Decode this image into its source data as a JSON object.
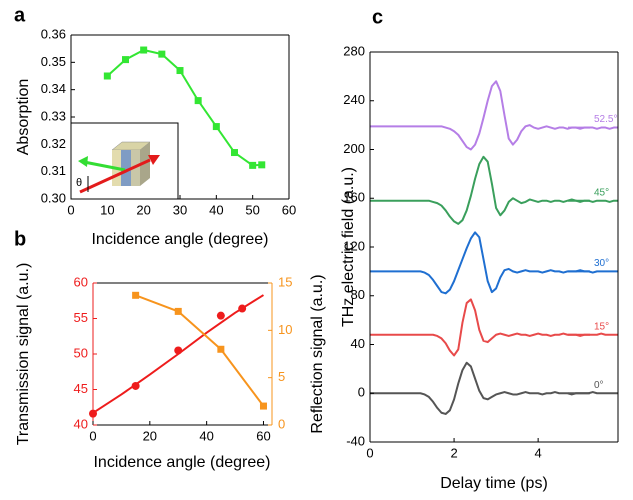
{
  "chart_data": [
    {
      "type": "line",
      "panel_label": "a",
      "xlabel": "Incidence angle (degree)",
      "ylabel": "Absorption",
      "inset_label": "θ",
      "xlim": [
        0,
        60
      ],
      "xticks": [
        0,
        10,
        20,
        30,
        40,
        50,
        60
      ],
      "ylim": [
        0.3,
        0.36
      ],
      "yticks": [
        {
          "value": 0.3,
          "label": "0.30"
        },
        0.31,
        0.32,
        0.33,
        0.34,
        0.35,
        0.36
      ],
      "series": [
        {
          "color": "#33e633",
          "marker": "square",
          "line": true,
          "x": [
            10,
            15,
            20,
            25,
            30,
            35,
            40,
            45,
            50,
            52.5
          ],
          "values": [
            0.345,
            0.351,
            0.3545,
            0.353,
            0.347,
            0.336,
            0.3265,
            0.317,
            0.3123,
            0.3125
          ]
        }
      ]
    },
    {
      "type": "line",
      "panel_label": "b",
      "xlabel": "Incidence angle (degree)",
      "ylabel": "Transmission signal (a.u.)",
      "y2label": "Reflection signal (a.u.)",
      "xlim": [
        0,
        63
      ],
      "xticks": [
        0,
        20,
        40,
        60
      ],
      "ylim": [
        40,
        60
      ],
      "yticks": [
        40,
        45,
        50,
        55,
        60
      ],
      "y2lim": [
        0,
        15
      ],
      "y2ticks": [
        0,
        5,
        10,
        15
      ],
      "series": [
        {
          "color": "#ee1c1c",
          "marker": "circle",
          "line": false,
          "x": [
            0,
            15,
            30,
            45,
            52.5
          ],
          "values": [
            41.6,
            45.5,
            50.5,
            55.4,
            56.4
          ]
        },
        {
          "color": "#ee1c1c",
          "line": true,
          "x": [
            0,
            10,
            20,
            30,
            40,
            50,
            60
          ],
          "values": [
            41.7,
            44.3,
            47.1,
            50,
            53,
            55.8,
            58.3
          ]
        },
        {
          "color": "#f7941d",
          "marker": "square",
          "line": true,
          "axis": "y2",
          "x": [
            15,
            30,
            45,
            60
          ],
          "values": [
            13.7,
            12,
            8,
            2
          ]
        }
      ]
    },
    {
      "type": "line",
      "panel_label": "c",
      "xlabel": "Delay time (ps)",
      "ylabel": "THz electric field (a.u.)",
      "xlim": [
        0,
        5.9
      ],
      "xticks": [
        0,
        2,
        4
      ],
      "ylim": [
        -40,
        280
      ],
      "yticks": [
        -40,
        0,
        40,
        80,
        120,
        160,
        200,
        240,
        280
      ],
      "x": [
        0,
        0.1,
        0.2,
        0.3,
        0.4,
        0.5,
        0.6,
        0.7,
        0.8,
        0.9,
        1,
        1.1,
        1.2,
        1.3,
        1.4,
        1.5,
        1.6,
        1.7,
        1.8,
        1.9,
        2,
        2.1,
        2.2,
        2.3,
        2.4,
        2.5,
        2.6,
        2.7,
        2.8,
        2.9,
        3,
        3.1,
        3.2,
        3.3,
        3.4,
        3.5,
        3.6,
        3.7,
        3.8,
        3.9,
        4,
        4.1,
        4.2,
        4.3,
        4.4,
        4.5,
        4.6,
        4.7,
        4.8,
        4.9,
        5,
        5.1,
        5.2,
        5.3,
        5.4,
        5.5,
        5.6,
        5.7,
        5.8,
        5.9
      ],
      "series": [
        {
          "name": "0°",
          "color": "#555555",
          "line": true,
          "values": [
            0,
            0,
            0,
            0,
            0,
            0,
            0,
            0,
            0,
            0,
            0,
            0,
            0,
            -1,
            -3,
            -7,
            -12,
            -16,
            -17,
            -14,
            -5,
            8,
            19,
            25,
            22,
            12,
            2,
            -4,
            -5,
            -3,
            -1,
            0,
            1,
            0,
            -1,
            -1,
            0,
            1,
            0,
            0,
            0,
            -1,
            0,
            0,
            1,
            0,
            0,
            0,
            -1,
            0,
            0,
            0,
            0,
            1,
            0,
            0,
            0,
            0,
            0,
            0
          ]
        },
        {
          "name": "15°",
          "color": "#e84a4a",
          "line": true,
          "values": [
            48,
            48,
            48,
            48,
            48,
            48,
            48,
            48,
            48,
            48,
            48,
            48,
            48,
            48,
            48,
            48,
            47,
            45,
            41,
            35,
            31,
            36,
            58,
            74,
            77,
            68,
            52,
            43,
            42,
            45,
            48,
            49,
            48,
            47,
            48,
            49,
            48,
            48,
            47,
            48,
            49,
            48,
            48,
            47,
            48,
            48,
            49,
            48,
            48,
            48,
            47,
            48,
            48,
            48,
            48,
            49,
            48,
            48,
            48,
            48
          ]
        },
        {
          "name": "30°",
          "color": "#1f6fd1",
          "line": true,
          "values": [
            100,
            100,
            100,
            100,
            100,
            100,
            100,
            100,
            100,
            100,
            100,
            100,
            100,
            99,
            97,
            93,
            88,
            83,
            82,
            85,
            92,
            101,
            110,
            119,
            127,
            132,
            128,
            110,
            92,
            83,
            86,
            95,
            101,
            102,
            100,
            99,
            100,
            101,
            100,
            100,
            100,
            99,
            100,
            101,
            100,
            100,
            99,
            100,
            100,
            100,
            101,
            100,
            100,
            99,
            100,
            100,
            100,
            100,
            100,
            100
          ]
        },
        {
          "name": "45°",
          "color": "#3a9f5c",
          "line": true,
          "values": [
            158,
            158,
            158,
            158,
            158,
            158,
            158,
            158,
            158,
            158,
            158,
            158,
            158,
            158,
            158,
            157,
            156,
            154,
            150,
            145,
            141,
            139,
            142,
            150,
            162,
            176,
            188,
            194,
            190,
            172,
            152,
            146,
            150,
            157,
            160,
            158,
            156,
            157,
            159,
            158,
            157,
            158,
            158,
            157,
            158,
            158,
            157,
            158,
            159,
            158,
            157,
            158,
            158,
            157,
            158,
            158,
            158,
            157,
            158,
            158
          ]
        },
        {
          "name": "52.5°",
          "color": "#b57ee6",
          "line": true,
          "values": [
            219,
            219,
            219,
            219,
            219,
            219,
            219,
            219,
            219,
            219,
            219,
            219,
            219,
            219,
            219,
            219,
            219,
            219,
            218,
            217,
            215,
            212,
            207,
            202,
            200,
            204,
            213,
            226,
            240,
            252,
            256,
            248,
            228,
            209,
            204,
            208,
            215,
            219,
            220,
            218,
            217,
            218,
            219,
            218,
            217,
            218,
            218,
            217,
            218,
            218,
            217,
            218,
            218,
            218,
            217,
            218,
            218,
            217,
            218,
            218
          ]
        }
      ]
    }
  ]
}
